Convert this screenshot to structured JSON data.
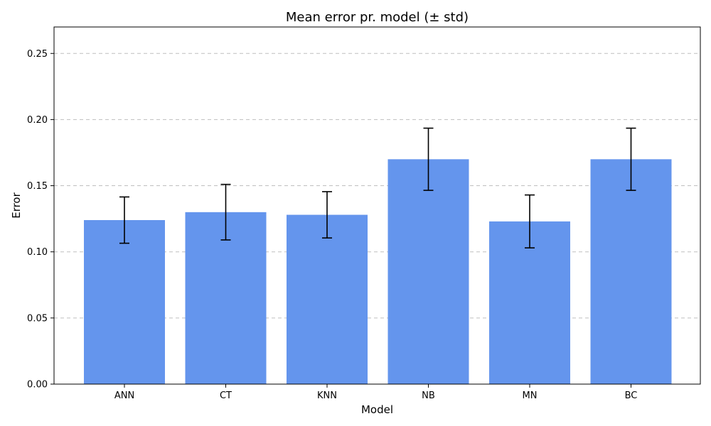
{
  "chart_data": {
    "type": "bar",
    "title": "Mean error pr. model (± std)",
    "xlabel": "Model",
    "ylabel": "Error",
    "categories": [
      "ANN",
      "CT",
      "KNN",
      "NB",
      "MN",
      "BC"
    ],
    "values": [
      0.124,
      0.13,
      0.128,
      0.17,
      0.123,
      0.17
    ],
    "errors": [
      0.0175,
      0.021,
      0.0175,
      0.0235,
      0.02,
      0.0235
    ],
    "ylim": [
      0,
      0.27
    ],
    "yticks": [
      0.0,
      0.05,
      0.1,
      0.15,
      0.2,
      0.25
    ],
    "ytick_labels": [
      "0.00",
      "0.05",
      "0.10",
      "0.15",
      "0.20",
      "0.25"
    ],
    "grid": "y-dashed",
    "colors": {
      "bar": "#6495ED",
      "error_bar": "#000000"
    }
  }
}
